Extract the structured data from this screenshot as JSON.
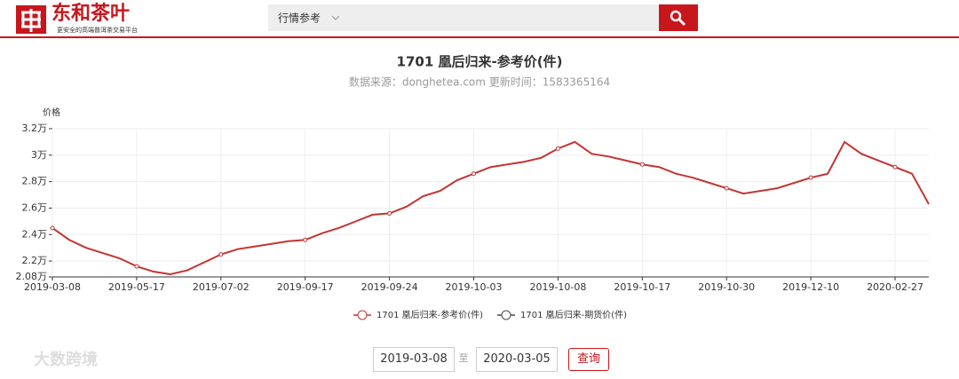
{
  "header": {
    "logo": "东和茶叶",
    "tagline": "更安全的高端普洱茶交易平台",
    "search_category": "行情参考"
  },
  "chart_data": {
    "type": "line",
    "title": "1701 凰后归来-参考价(件)",
    "subtitle": "数据来源：donghetea.com 更新时间：1583365164",
    "y_label": "价格",
    "categories": [
      "2019-03-08",
      null,
      null,
      null,
      null,
      "2019-05-17",
      null,
      null,
      null,
      null,
      "2019-07-02",
      null,
      null,
      null,
      null,
      "2019-09-17",
      null,
      null,
      null,
      null,
      "2019-09-24",
      null,
      null,
      null,
      null,
      "2019-10-03",
      null,
      null,
      null,
      null,
      "2019-10-08",
      null,
      null,
      null,
      null,
      "2019-10-17",
      null,
      null,
      null,
      null,
      "2019-10-30",
      null,
      null,
      null,
      null,
      "2019-12-10",
      null,
      null,
      null,
      null,
      "2020-02-27",
      null,
      null
    ],
    "series": [
      {
        "name": "1701 凰后归来-参考价(件)",
        "color": "#c23531",
        "values": [
          24500,
          23600,
          23000,
          22600,
          22200,
          21600,
          21200,
          21000,
          21300,
          21900,
          22500,
          22900,
          23100,
          23300,
          23500,
          23600,
          24100,
          24500,
          25000,
          25500,
          25600,
          26100,
          26900,
          27300,
          28100,
          28600,
          29100,
          29300,
          29500,
          29800,
          30500,
          31000,
          30100,
          29900,
          29600,
          29300,
          29100,
          28600,
          28300,
          27900,
          27500,
          27100,
          27300,
          27500,
          27900,
          28300,
          28600,
          31000,
          30100,
          29600,
          29100,
          28600,
          26300
        ]
      },
      {
        "name": "1701 凰后归来-期货价(件)",
        "color": "#4a4a4a",
        "values": [
          null,
          null,
          null,
          null,
          null,
          null,
          null,
          null,
          null,
          null,
          null,
          null,
          null,
          null,
          null,
          null,
          null,
          null,
          null,
          null,
          null,
          null,
          null,
          null,
          null,
          null,
          null,
          null,
          null,
          null,
          null,
          null,
          null,
          null,
          null,
          null,
          null,
          null,
          null,
          null,
          null,
          null,
          null,
          null,
          null,
          null,
          null,
          null,
          null,
          null,
          null,
          null,
          null
        ]
      }
    ],
    "ylim": [
      20800,
      32000
    ],
    "yticks": [
      {
        "value": 20800,
        "label": "2.08万"
      },
      {
        "value": 22000,
        "label": "2.2万"
      },
      {
        "value": 24000,
        "label": "2.4万"
      },
      {
        "value": 26000,
        "label": "2.6万"
      },
      {
        "value": 28000,
        "label": "2.8万"
      },
      {
        "value": 30000,
        "label": "3万"
      },
      {
        "value": 32000,
        "label": "3.2万"
      }
    ],
    "grid": true,
    "legend": "bottom"
  },
  "filter": {
    "start_date": "2019-03-08",
    "separator": "至",
    "end_date": "2020-03-05",
    "button": "查询"
  },
  "watermark": "大数跨境"
}
